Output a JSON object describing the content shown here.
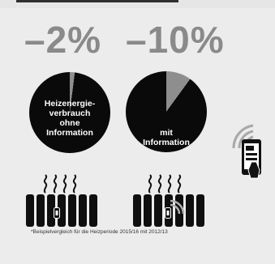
{
  "left": {
    "percent": "–2%",
    "label": "Heizenergie-\nverbrauch\nohne\nInformation",
    "pie_share": 0.02
  },
  "right": {
    "percent": "–10%",
    "label": "mit\nInformation",
    "pie_share": 0.1
  },
  "footnote": "*Beispielvergleich für die Heizperiode 2015/16 mit 2012/13",
  "colors": {
    "pie": "#0a0a0a",
    "slice": "#8e8e8e",
    "percent": "#8a8a8a",
    "radiator": "#0f0f0f",
    "background": "#ececec"
  },
  "icons": [
    "wifi-signal-icon",
    "smartphone-icon",
    "heat-waves-icon",
    "thermostat-icon",
    "radiator-icon"
  ]
}
